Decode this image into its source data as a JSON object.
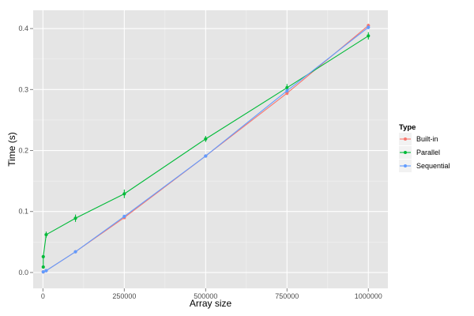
{
  "chart_data": {
    "type": "line",
    "xlabel": "Array size",
    "ylabel": "Time (s)",
    "xlim": [
      -30000,
      1060000
    ],
    "ylim": [
      -0.026,
      0.43
    ],
    "x_ticks": [
      0,
      250000,
      500000,
      750000,
      1000000
    ],
    "x_tick_labels": [
      "0",
      "250000",
      "500000",
      "750000",
      "1000000"
    ],
    "y_ticks": [
      0.0,
      0.1,
      0.2,
      0.3,
      0.4
    ],
    "y_tick_labels": [
      "0.0",
      "0.1",
      "0.2",
      "0.3",
      "0.4"
    ],
    "grid": true,
    "legend": {
      "title": "Type",
      "placement": "right"
    },
    "series": [
      {
        "name": "Built-in",
        "color": "#F8766D",
        "x": [
          1000,
          10000,
          100000,
          250000,
          500000,
          750000,
          1000000
        ],
        "y": [
          0.001,
          0.003,
          0.034,
          0.09,
          0.191,
          0.294,
          0.405
        ],
        "err": [
          0,
          0,
          0.002,
          0.002,
          0.002,
          0.003,
          0.003
        ]
      },
      {
        "name": "Parallel",
        "color": "#00BA38",
        "x": [
          1000,
          1000,
          10000,
          100000,
          250000,
          500000,
          750000,
          1000000
        ],
        "y": [
          0.009,
          0.026,
          0.062,
          0.089,
          0.129,
          0.219,
          0.303,
          0.388
        ],
        "err": [
          0,
          0,
          0.005,
          0.006,
          0.007,
          0.005,
          0.006,
          0.006
        ]
      },
      {
        "name": "Sequential",
        "color": "#619CFF",
        "x": [
          1000,
          10000,
          100000,
          250000,
          500000,
          750000,
          1000000
        ],
        "y": [
          0.001,
          0.003,
          0.034,
          0.092,
          0.191,
          0.298,
          0.402
        ],
        "err": [
          0,
          0,
          0.002,
          0.002,
          0.002,
          0.003,
          0.003
        ]
      }
    ]
  }
}
